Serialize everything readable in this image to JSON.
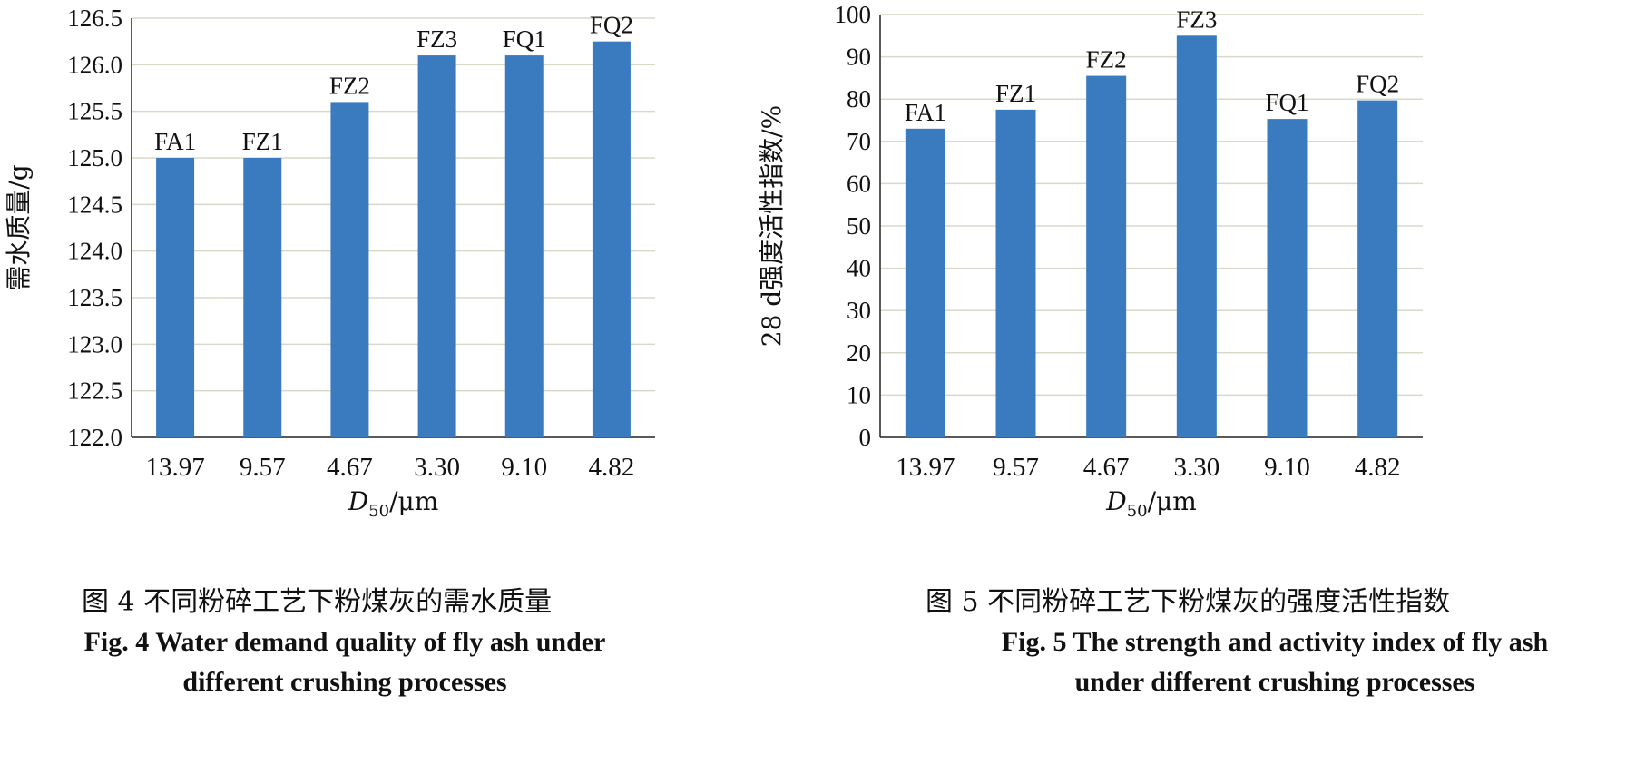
{
  "chart_data": [
    {
      "type": "bar",
      "categories": [
        "13.97",
        "9.57",
        "4.67",
        "3.30",
        "9.10",
        "4.82"
      ],
      "bar_labels": [
        "FA1",
        "FZ1",
        "FZ2",
        "FZ3",
        "FQ1",
        "FQ2"
      ],
      "values": [
        125.0,
        125.0,
        125.6,
        126.1,
        126.1,
        126.25
      ],
      "ylabel": "需水质量/g",
      "xlabel": {
        "main": "D",
        "sub": "50",
        "unit": "/μm"
      },
      "ylim": [
        122.0,
        126.5
      ],
      "yticks": [
        "122.0",
        "122.5",
        "123.0",
        "123.5",
        "124.0",
        "124.5",
        "125.0",
        "125.5",
        "126.0",
        "126.5"
      ],
      "grid": true,
      "bar_color": "#3a7bbf",
      "caption_cn": "图 4   不同粉碎工艺下粉煤灰的需水质量",
      "caption_en": [
        "Fig. 4   Water demand quality of fly ash under",
        "different crushing processes"
      ]
    },
    {
      "type": "bar",
      "categories": [
        "13.97",
        "9.57",
        "4.67",
        "3.30",
        "9.10",
        "4.82"
      ],
      "bar_labels": [
        "FA1",
        "FZ1",
        "FZ2",
        "FZ3",
        "FQ1",
        "FQ2"
      ],
      "values": [
        73,
        77.5,
        85.5,
        95,
        75.3,
        79.7
      ],
      "ylabel": "28 d强度活性指数/%",
      "xlabel": {
        "main": "D",
        "sub": "50",
        "unit": "/μm"
      },
      "ylim": [
        0,
        100
      ],
      "yticks": [
        "0",
        "10",
        "20",
        "30",
        "40",
        "50",
        "60",
        "70",
        "80",
        "90",
        "100"
      ],
      "grid": true,
      "bar_color": "#3a7bbf",
      "caption_cn": "图 5 不同粉碎工艺下粉煤灰的强度活性指数",
      "caption_en": [
        "Fig. 5    The strength and activity index of fly ash",
        "under different crushing processes"
      ]
    }
  ]
}
